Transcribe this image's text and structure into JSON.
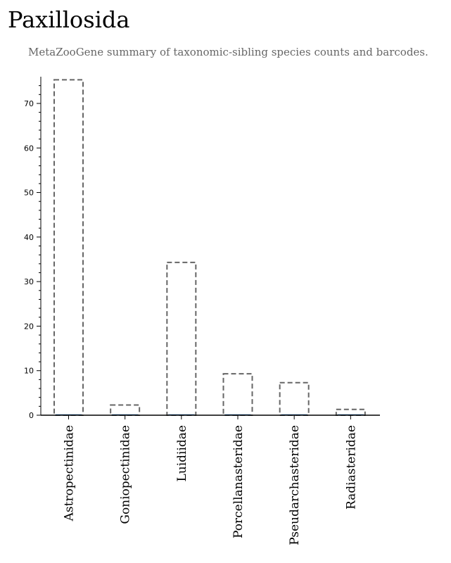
{
  "title": "Paxillosida",
  "subtitle": "MetaZooGene summary of taxonomic-sibling species counts and barcodes.",
  "chart_data": {
    "type": "bar",
    "title": "",
    "xlabel": "",
    "ylabel": "",
    "ylim": [
      0,
      76
    ],
    "yticks": [
      0,
      10,
      20,
      30,
      40,
      50,
      60,
      70
    ],
    "categories": [
      "Astropectinidae",
      "Goniopectinidae",
      "Luidiidae",
      "Porcellanasteridae",
      "Pseudarchasteridae",
      "Radiasteridae"
    ],
    "series": [
      {
        "values": [
          75.3,
          2.3,
          34.3,
          9.3,
          7.3,
          1.3
        ],
        "style": "dashed-outline",
        "color": "#666666"
      },
      {
        "values": [
          0.2,
          0.2,
          0.2,
          0.2,
          0.2,
          0.2
        ],
        "style": "solid",
        "color": "#1f5fa0"
      }
    ],
    "grid": false,
    "legend": "none"
  }
}
